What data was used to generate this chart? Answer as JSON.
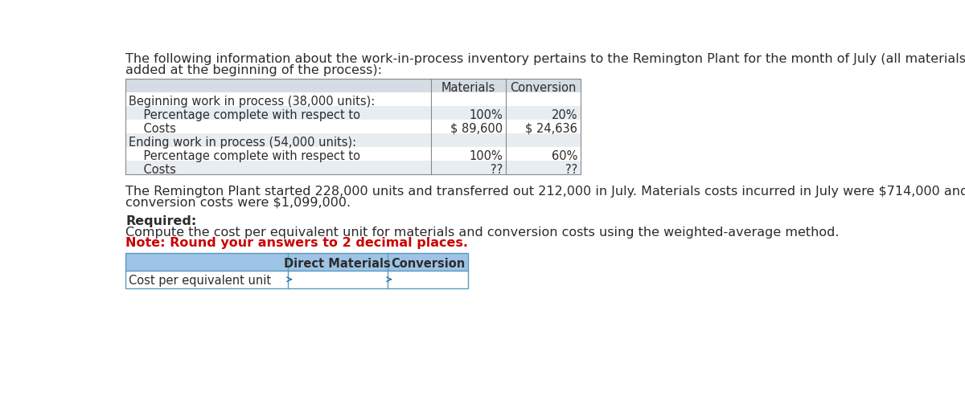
{
  "intro_text_line1": "The following information about the work-in-process inventory pertains to the Remington Plant for the month of July (all materials are",
  "intro_text_line2": "added at the beginning of the process):",
  "table1_rows": [
    [
      "Beginning work in process (38,000 units):",
      "",
      ""
    ],
    [
      "    Percentage complete with respect to",
      "100%",
      "20%"
    ],
    [
      "    Costs",
      "$ 89,600",
      "$ 24,636"
    ],
    [
      "Ending work in process (54,000 units):",
      "",
      ""
    ],
    [
      "    Percentage complete with respect to",
      "100%",
      "60%"
    ],
    [
      "    Costs",
      "??",
      "??"
    ]
  ],
  "middle_text_line1": "The Remington Plant started 228,000 units and transferred out 212,000 in July. Materials costs incurred in July were $714,000 and",
  "middle_text_line2": "conversion costs were $1,099,000.",
  "required_label": "Required:",
  "required_text": "Compute the cost per equivalent unit for materials and conversion costs using the weighted-average method.",
  "note_text": "Note: Round your answers to 2 decimal places.",
  "bg_color": "#ffffff",
  "table1_header_bg": "#d6dce4",
  "table1_row_bg_alt": "#e8edf2",
  "table1_row_bg_plain": "#ffffff",
  "table2_header_bg": "#9dc3e6",
  "table2_row_bg": "#ffffff",
  "table_border_color": "#888888",
  "table2_border_color": "#5a9abf",
  "text_color": "#2c2c2c",
  "note_color": "#cc0000"
}
